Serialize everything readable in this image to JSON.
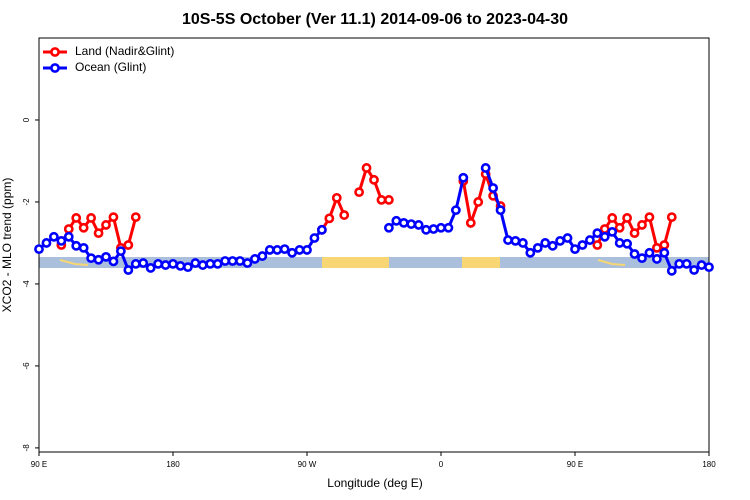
{
  "chart_data": {
    "type": "line",
    "title": "10S-5S October (Ver 11.1)   2014-09-06 to 2023-04-30",
    "x_label": "Longitude (deg E)",
    "y_label": "XCO2 - MLO trend (ppm)",
    "xlim": [
      90,
      540
    ],
    "ylim": [
      -8.1,
      2
    ],
    "xticks": [
      {
        "value": 90,
        "label": "90 E"
      },
      {
        "value": 180,
        "label": "180"
      },
      {
        "value": 270,
        "label": "90 W"
      },
      {
        "value": 360,
        "label": "0"
      },
      {
        "value": 450,
        "label": "90 E"
      },
      {
        "value": 540,
        "label": "180"
      }
    ],
    "yticks": [
      0,
      -2,
      -4,
      -6,
      -8
    ],
    "legend": "top-left",
    "x": [
      90,
      95,
      100,
      105,
      110,
      115,
      120,
      125,
      130,
      135,
      140,
      145,
      150,
      155,
      160,
      165,
      170,
      175,
      180,
      185,
      190,
      195,
      200,
      205,
      210,
      215,
      220,
      225,
      230,
      235,
      240,
      245,
      250,
      255,
      260,
      265,
      270,
      275,
      280,
      285,
      290,
      295,
      300,
      305,
      310,
      315,
      320,
      325,
      330,
      335,
      340,
      345,
      350,
      355,
      360,
      365,
      370,
      375,
      380,
      385,
      390,
      395,
      400,
      405,
      410,
      415,
      420,
      425,
      430,
      435,
      440,
      445,
      450,
      455,
      460,
      465,
      470,
      475,
      480,
      485,
      490,
      495,
      500,
      505,
      510,
      515,
      520,
      525,
      530,
      535,
      540
    ],
    "series": [
      {
        "name": "Land (Nadir&Glint)",
        "color": "#ff0000",
        "values": [
          null,
          null,
          null,
          -3.05,
          -2.66,
          -2.39,
          -2.63,
          -2.39,
          -2.76,
          -2.56,
          -2.37,
          -3.12,
          -3.05,
          -2.37,
          null,
          null,
          null,
          null,
          null,
          null,
          null,
          null,
          null,
          null,
          null,
          null,
          null,
          null,
          null,
          null,
          null,
          null,
          null,
          null,
          null,
          null,
          null,
          null,
          -2.68,
          -2.4,
          -1.9,
          -2.32,
          null,
          -1.76,
          -1.17,
          -1.46,
          -1.95,
          -1.95,
          null,
          null,
          null,
          null,
          null,
          null,
          null,
          null,
          null,
          -1.49,
          -2.51,
          -2.0,
          -1.32,
          -1.85,
          -2.1,
          null,
          null,
          null,
          null,
          null,
          null,
          null,
          null,
          null,
          null,
          null,
          null,
          -3.05,
          -2.66,
          -2.39,
          -2.63,
          -2.39,
          -2.76,
          -2.56,
          -2.37,
          -3.12,
          -3.05,
          -2.37,
          null,
          null,
          null,
          null,
          null
        ]
      },
      {
        "name": "Ocean (Glint)",
        "color": "#0000ff",
        "values": [
          -3.15,
          -3.0,
          -2.85,
          -2.95,
          -2.85,
          -3.07,
          -3.12,
          -3.37,
          -3.41,
          -3.34,
          -3.45,
          -3.2,
          -3.66,
          -3.51,
          -3.49,
          -3.61,
          -3.51,
          -3.54,
          -3.51,
          -3.56,
          -3.59,
          -3.49,
          -3.54,
          -3.51,
          -3.51,
          -3.44,
          -3.44,
          -3.44,
          -3.49,
          -3.39,
          -3.32,
          -3.17,
          -3.17,
          -3.15,
          -3.24,
          -3.17,
          -3.17,
          -2.88,
          -2.68,
          null,
          null,
          null,
          null,
          null,
          null,
          null,
          null,
          -2.63,
          -2.46,
          -2.51,
          -2.54,
          -2.56,
          -2.68,
          -2.66,
          -2.63,
          -2.63,
          -2.2,
          -1.41,
          null,
          null,
          -1.17,
          -1.66,
          -2.2,
          -2.93,
          -2.95,
          -3.0,
          -3.24,
          -3.12,
          -3.0,
          -3.07,
          -2.95,
          -2.88,
          -3.15,
          -3.05,
          -2.93,
          -2.76,
          -2.85,
          -2.73,
          -3.0,
          -3.02,
          -3.27,
          -3.37,
          -3.24,
          -3.39,
          -3.24,
          -3.68,
          -3.51,
          -3.51,
          -3.66,
          -3.54,
          -3.59
        ]
      }
    ]
  }
}
